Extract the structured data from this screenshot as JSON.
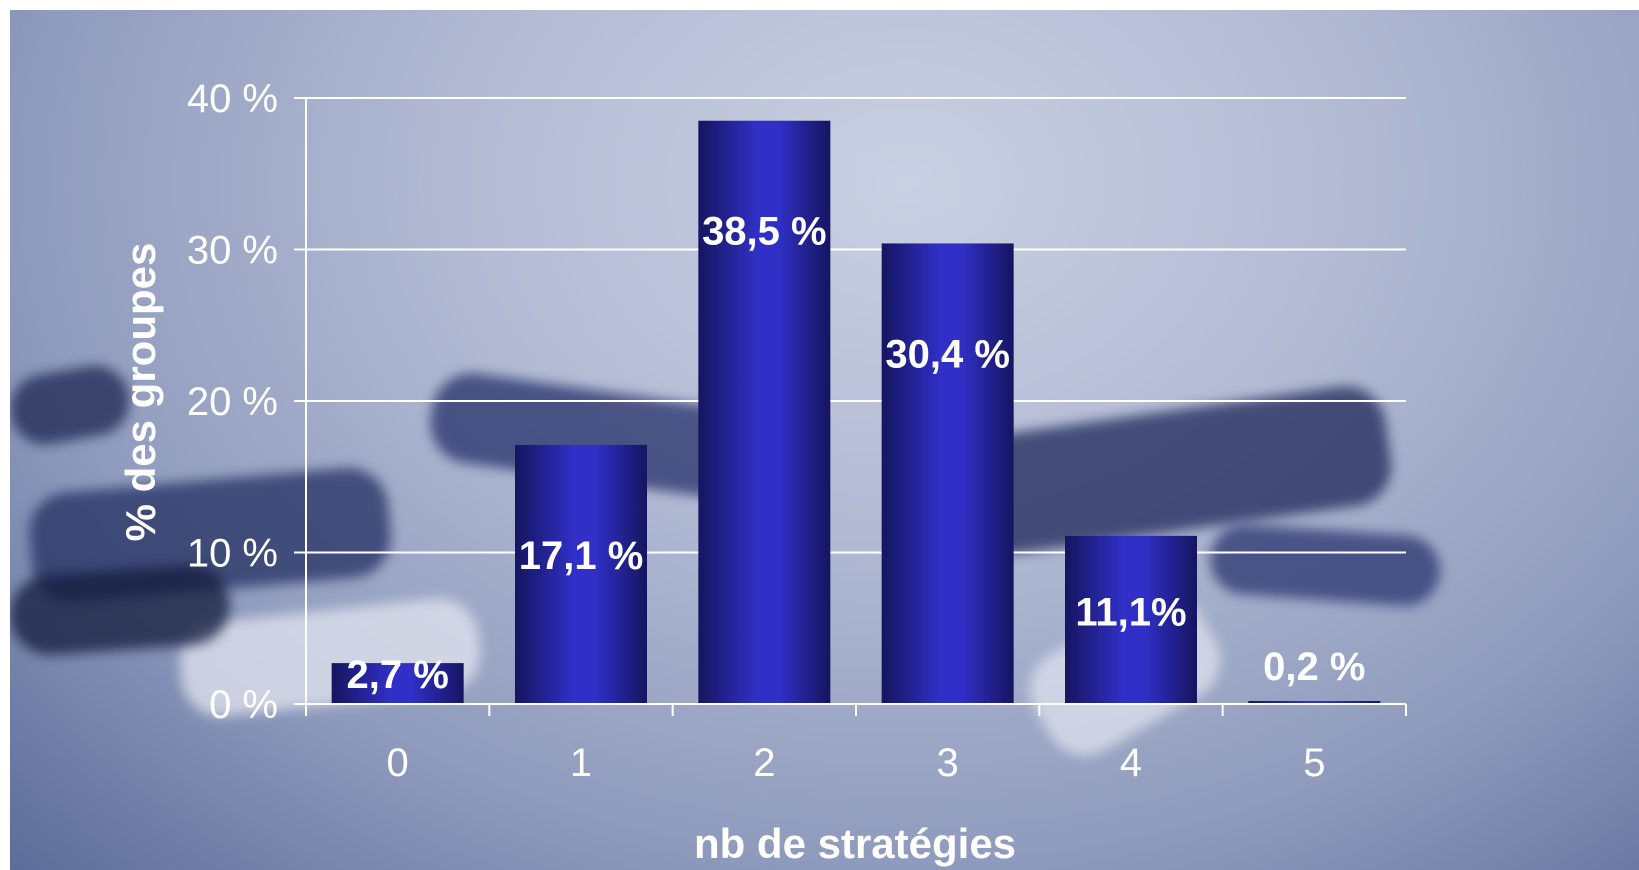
{
  "chart_data": {
    "type": "bar",
    "categories": [
      "0",
      "1",
      "2",
      "3",
      "4",
      "5"
    ],
    "values": [
      2.7,
      17.1,
      38.5,
      30.4,
      11.1,
      0.2
    ],
    "value_labels": [
      "2,7 %",
      "17,1 %",
      "38,5 %",
      "30,4 %",
      "11,1%",
      "0,2 %"
    ],
    "title": "",
    "xlabel": "nb de stratégies",
    "ylabel": "% des groupes",
    "ylim": [
      0,
      40
    ],
    "yticks": [
      0,
      10,
      20,
      30,
      40
    ],
    "ytick_labels": [
      "0 %",
      "10 %",
      "20 %",
      "30 %",
      "40 %"
    ],
    "grid": true,
    "legend": "none",
    "bar_color": "#3030c8",
    "bar_edge_color": "#151560",
    "background_color": "#b3bbd4"
  }
}
